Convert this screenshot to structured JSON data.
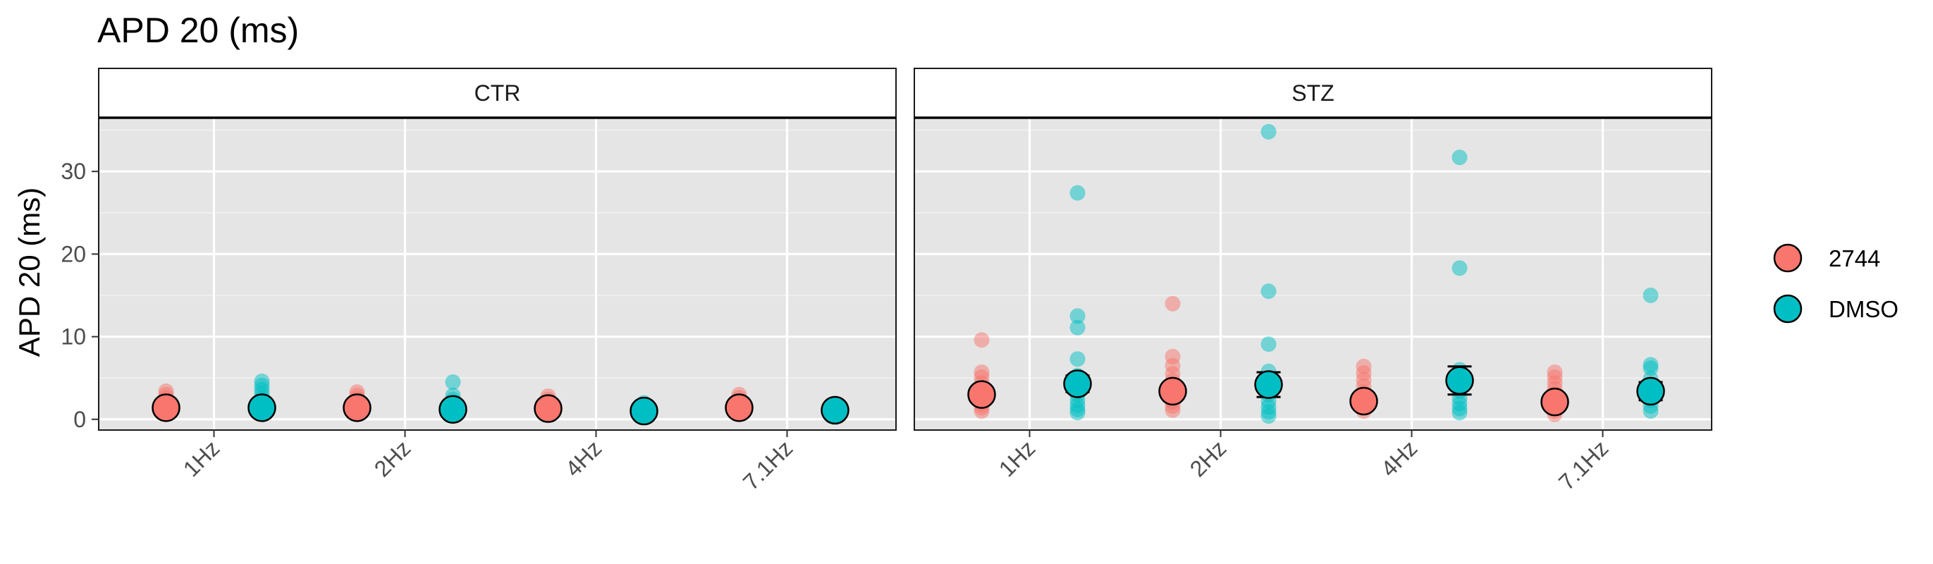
{
  "chart_data": {
    "type": "scatter",
    "title": "APD 20 (ms)",
    "ylabel": "APD 20 (ms)",
    "xlabel": "",
    "ylim": [
      -1.3,
      36.5
    ],
    "yticks": [
      0,
      10,
      20,
      30
    ],
    "categories": [
      "1Hz",
      "2Hz",
      "4Hz",
      "7.1Hz"
    ],
    "grid": true,
    "legend_position": "right",
    "series": [
      {
        "name": "2744",
        "color": "#F8766D"
      },
      {
        "name": "DMSO",
        "color": "#00BFC4"
      }
    ],
    "panels": [
      {
        "label": "CTR",
        "points": {
          "2744": [
            [
              3.4,
              3.0,
              2.6,
              2.2,
              1.8,
              1.5,
              1.2,
              1.0,
              0.8
            ],
            [
              3.3,
              2.9,
              2.5,
              2.1,
              1.7,
              1.4,
              1.1,
              0.9,
              0.7
            ],
            [
              2.8,
              2.4,
              2.0,
              1.7,
              1.4,
              1.1,
              0.9,
              0.7
            ],
            [
              3.0,
              2.6,
              2.2,
              1.8,
              1.5,
              1.2,
              1.0,
              0.8
            ]
          ],
          "DMSO": [
            [
              4.6,
              4.1,
              3.6,
              3.1,
              2.6,
              2.2,
              1.8,
              1.4,
              1.1,
              0.9
            ],
            [
              4.5,
              2.9,
              2.4,
              2.0,
              1.6,
              1.3,
              1.0,
              0.8
            ],
            [
              2.0,
              1.7,
              1.4,
              1.1,
              0.9,
              0.7
            ],
            [
              1.8,
              1.5,
              1.2,
              1.0,
              0.8
            ]
          ]
        },
        "means": {
          "2744": [
            1.4,
            1.4,
            1.3,
            1.4
          ],
          "DMSO": [
            1.4,
            1.2,
            1.0,
            1.1
          ]
        },
        "errors": {
          "2744": [
            0.25,
            0.25,
            0.2,
            0.25
          ],
          "DMSO": [
            0.3,
            0.3,
            0.15,
            0.15
          ]
        }
      },
      {
        "label": "STZ",
        "points": {
          "2744": [
            [
              9.6,
              5.7,
              5.1,
              4.4,
              3.8,
              3.2,
              2.7,
              2.2,
              1.8,
              1.4,
              1.0
            ],
            [
              14.0,
              7.6,
              6.5,
              5.5,
              4.7,
              4.0,
              3.3,
              2.7,
              2.1,
              1.6,
              1.1
            ],
            [
              6.4,
              5.6,
              4.8,
              4.0,
              3.3,
              2.6,
              2.0,
              1.5,
              1.0
            ],
            [
              5.7,
              5.1,
              4.4,
              3.7,
              3.1,
              2.5,
              1.9,
              1.4,
              1.0,
              0.6
            ]
          ],
          "DMSO": [
            [
              27.4,
              12.5,
              11.1,
              7.3,
              5.3,
              4.5,
              3.7,
              3.0,
              2.3,
              1.7,
              1.2,
              0.8
            ],
            [
              34.8,
              15.5,
              9.1,
              5.8,
              4.8,
              3.9,
              3.0,
              2.2,
              1.5,
              0.9,
              0.4
            ],
            [
              31.7,
              18.3,
              6.0,
              5.0,
              4.2,
              3.4,
              2.6,
              1.9,
              1.3,
              0.8
            ],
            [
              15.0,
              6.6,
              6.2,
              4.9,
              4.0,
              3.1,
              2.3,
              1.6,
              1.0
            ]
          ]
        },
        "means": {
          "2744": [
            3.0,
            3.4,
            2.2,
            2.1
          ],
          "DMSO": [
            4.3,
            4.2,
            4.7,
            3.4
          ]
        },
        "errors": {
          "2744": [
            0.6,
            0.8,
            0.5,
            0.45
          ],
          "DMSO": [
            1.0,
            1.5,
            1.7,
            1.1
          ]
        }
      }
    ]
  }
}
